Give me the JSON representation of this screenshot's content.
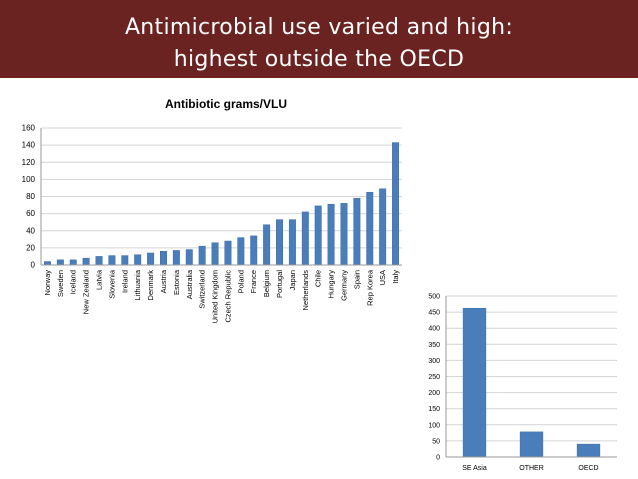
{
  "slide": {
    "title_line1": "Antimicrobial use varied and high:",
    "title_line2": "highest outside the OECD"
  },
  "colors": {
    "banner": "#6b2322",
    "bar": "#4a7ebb",
    "bar_edge": "#3a6aa4",
    "grid": "#d4d4d4",
    "axis": "#9a9a9a"
  },
  "chart_data": [
    {
      "type": "bar",
      "title": "Antibiotic grams/VLU",
      "xlabel": "",
      "ylabel": "",
      "ylim": [
        0,
        160
      ],
      "yticks": [
        0,
        20,
        40,
        60,
        80,
        100,
        120,
        140,
        160
      ],
      "grid": true,
      "categories": [
        "Norway",
        "Sweden",
        "Iceland",
        "New Zealand",
        "Latvia",
        "Slovenia",
        "Ireland",
        "Lithuania",
        "Denmark",
        "Austria",
        "Estonia",
        "Australia",
        "Switzerland",
        "United Kingdom",
        "Czech Republic",
        "Poland",
        "France",
        "Belgium",
        "Portugal",
        "Japan",
        "Netherlands",
        "Chile",
        "Hungary",
        "Germany",
        "Spain",
        "Rep Korea",
        "USA",
        "Italy"
      ],
      "values": [
        4,
        6,
        6,
        8,
        10,
        11,
        11,
        12,
        14,
        16,
        17,
        18,
        22,
        26,
        28,
        32,
        34,
        47,
        53,
        53,
        62,
        69,
        71,
        72,
        78,
        85,
        89,
        143
      ]
    },
    {
      "type": "bar",
      "title": "",
      "xlabel": "",
      "ylabel": "",
      "ylim": [
        0,
        500
      ],
      "yticks": [
        0,
        50,
        100,
        150,
        200,
        250,
        300,
        350,
        400,
        450,
        500
      ],
      "grid": true,
      "categories": [
        "SE Asia",
        "OTHER",
        "OECD"
      ],
      "values": [
        462,
        78,
        40
      ]
    }
  ]
}
